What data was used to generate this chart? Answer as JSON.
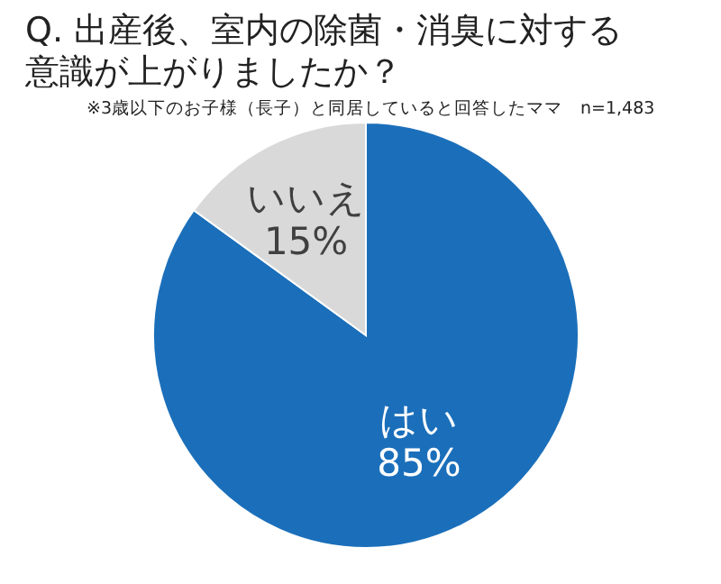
{
  "chart_data": {
    "type": "pie",
    "title": "Q. 出産後、室内の除菌・消臭に対する意識が上がりましたか？",
    "subtitle": "※3歳以下のお子様（長子）と同居していると回答したママ　n=1,483",
    "categories": [
      "はい",
      "いいえ"
    ],
    "values": [
      85,
      15
    ],
    "value_labels": [
      "85%",
      "15%"
    ],
    "colors": [
      "#1b6fba",
      "#d9d9d9"
    ]
  }
}
